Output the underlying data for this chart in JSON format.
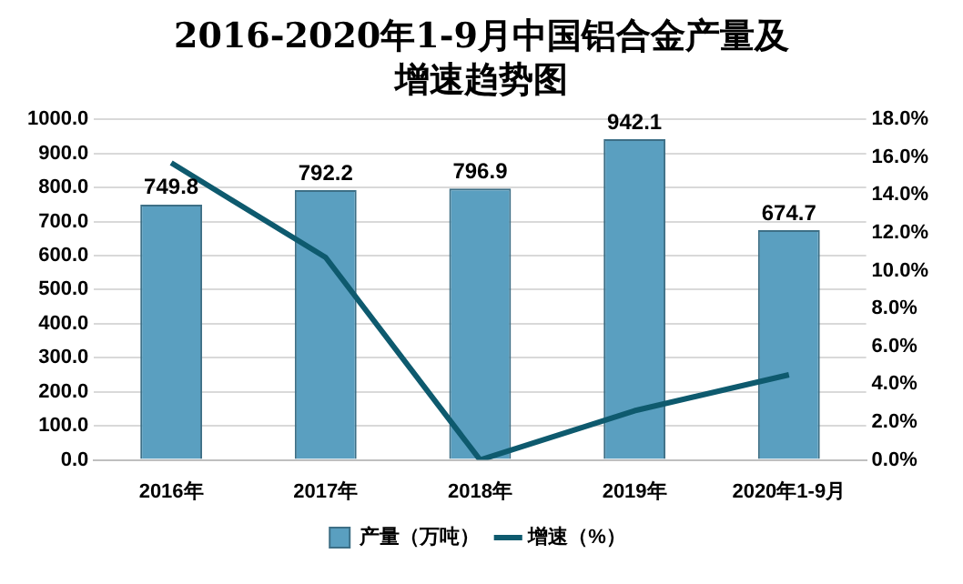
{
  "chart_data": {
    "type": "bar",
    "title": "2016-2020年1-9月中国铝合金产量及增速趋势图",
    "categories": [
      "2016年",
      "2017年",
      "2018年",
      "2019年",
      "2020年1-9月"
    ],
    "series": [
      {
        "name": "产量（万吨）",
        "color": "#5a9fc0",
        "values": [
          749.8,
          792.2,
          796.9,
          942.1,
          674.7
        ],
        "value_labels": [
          "749.8",
          "792.2",
          "796.9",
          "942.1",
          "674.7"
        ]
      },
      {
        "name": "增速（%）",
        "type": "line",
        "axis": "y2",
        "color": "#0e5a6e",
        "values": [
          15.7,
          10.7,
          0.0,
          2.6,
          4.5
        ]
      }
    ],
    "ylim": [
      0,
      1000
    ],
    "yticks": [
      {
        "value": 0,
        "label": "0.0"
      },
      {
        "value": 100,
        "label": "100.0"
      },
      {
        "value": 200,
        "label": "200.0"
      },
      {
        "value": 300,
        "label": "300.0"
      },
      {
        "value": 400,
        "label": "400.0"
      },
      {
        "value": 500,
        "label": "500.0"
      },
      {
        "value": 600,
        "label": "600.0"
      },
      {
        "value": 700,
        "label": "700.0"
      },
      {
        "value": 800,
        "label": "800.0"
      },
      {
        "value": 900,
        "label": "900.0"
      },
      {
        "value": 1000,
        "label": "1000.0"
      }
    ],
    "y2lim": [
      0,
      18
    ],
    "y2ticks": [
      {
        "value": 0,
        "label": "0.0%"
      },
      {
        "value": 2,
        "label": "2.0%"
      },
      {
        "value": 4,
        "label": "4.0%"
      },
      {
        "value": 6,
        "label": "6.0%"
      },
      {
        "value": 8,
        "label": "8.0%"
      },
      {
        "value": 10,
        "label": "10.0%"
      },
      {
        "value": 12,
        "label": "12.0%"
      },
      {
        "value": 14,
        "label": "14.0%"
      },
      {
        "value": 16,
        "label": "16.0%"
      },
      {
        "value": 18,
        "label": "18.0%"
      }
    ],
    "grid": "y",
    "legend": "bottom"
  }
}
